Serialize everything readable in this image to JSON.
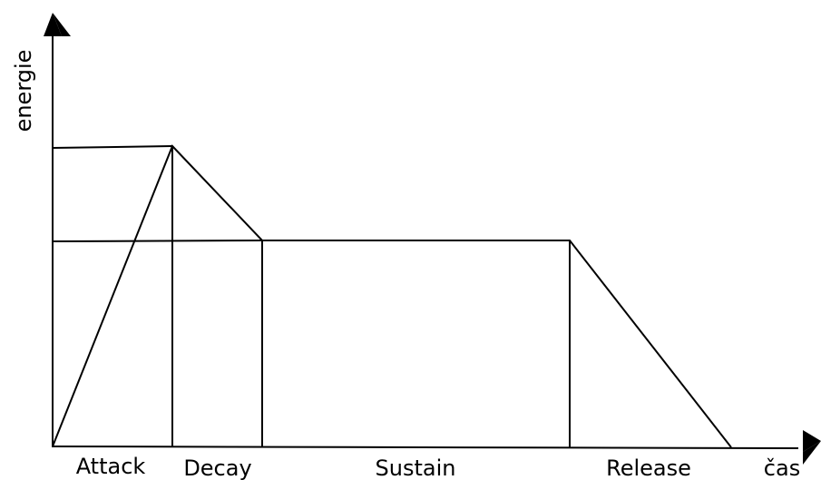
{
  "axes": {
    "y_label": "energie",
    "x_label": "čas"
  },
  "phases": [
    {
      "label": "Attack"
    },
    {
      "label": "Decay"
    },
    {
      "label": "Sustain"
    },
    {
      "label": "Release"
    }
  ]
}
